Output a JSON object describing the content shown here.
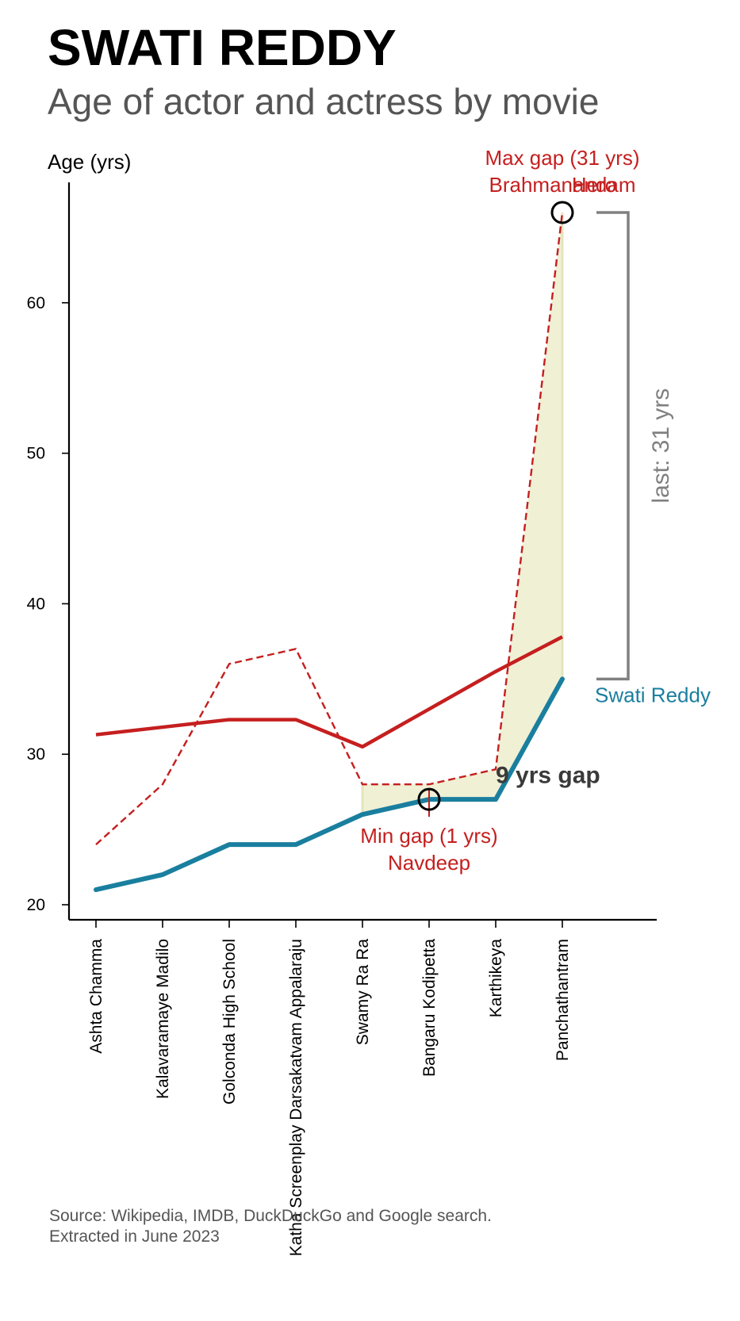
{
  "chart_data": {
    "type": "line",
    "title": "SWATI REDDY",
    "subtitle": "Age of actor and actress by movie",
    "ylabel": "Age (yrs)",
    "xlabel": "",
    "ylim": [
      19,
      68
    ],
    "yticks": [
      20,
      30,
      40,
      50,
      60
    ],
    "categories": [
      "Ashta Chamma",
      "Kalavaramaye Madilo",
      "Golconda High School",
      "Katha Screenplay Darsakatvam Appalaraju",
      "Swamy Ra Ra",
      "Bangaru Kodipetta",
      "Karthikeya",
      "Panchathantram"
    ],
    "series": [
      {
        "name": "Swati Reddy",
        "color": "#1a7f9f",
        "style": "solid-thick",
        "values": [
          21,
          22,
          24,
          24,
          26,
          27,
          27,
          35
        ]
      },
      {
        "name": "",
        "color": "#c51f1f",
        "style": "dashed",
        "values": [
          24,
          28,
          36,
          37,
          28,
          28,
          29,
          66
        ]
      },
      {
        "name": "",
        "color": "#c51f1f",
        "style": "solid-trend",
        "values": [
          31.3,
          31.8,
          32.3,
          32.3,
          30.5,
          33,
          35.5,
          37.8
        ]
      }
    ],
    "annotations": {
      "max_gap": {
        "line1": "Max gap (31 yrs)",
        "line2": "Brahmanandam",
        "extra": "Hero",
        "index": 7,
        "value": 66
      },
      "min_gap": {
        "line1": "Min gap (1 yrs)",
        "line2": "Navdeep",
        "index": 5,
        "value": 27
      },
      "gap_label": "9 yrs gap",
      "last_label": "last: 31 yrs",
      "series_label": "Swati Reddy"
    },
    "grid": false,
    "source_line1": "Source: Wikipedia, IMDB, DuckDuckGo and Google search.",
    "source_line2": "Extracted in June 2023"
  }
}
